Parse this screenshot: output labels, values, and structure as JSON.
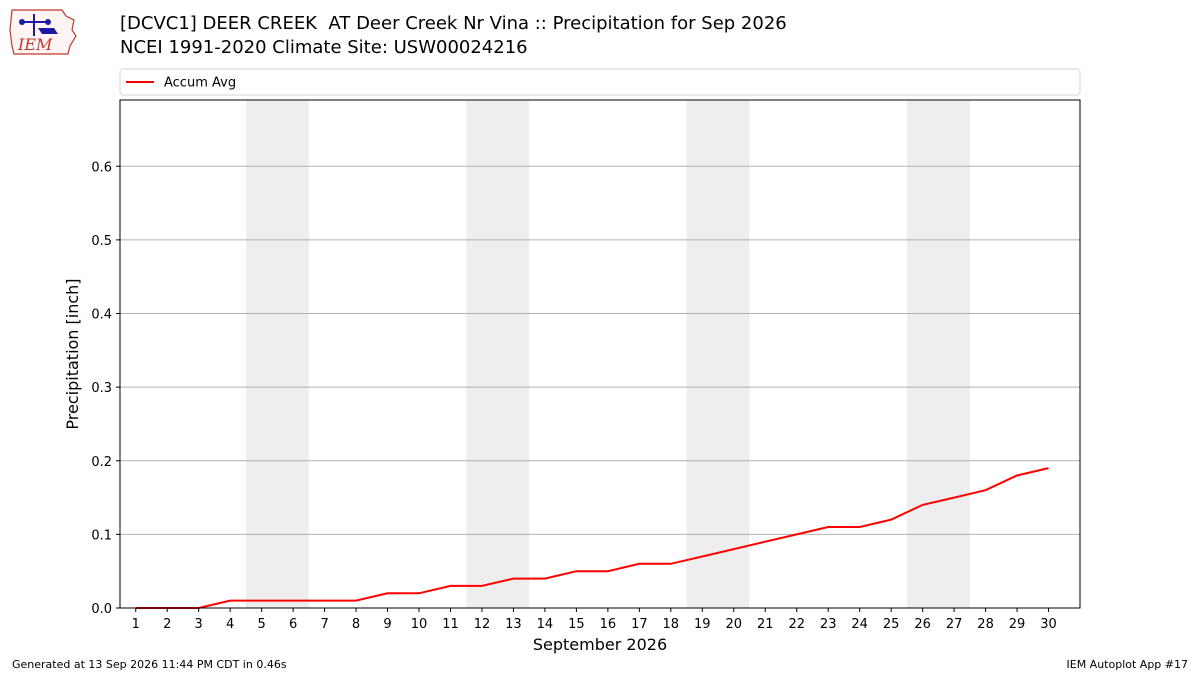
{
  "logo": {
    "text": "IEM",
    "icon": "iem-logo-icon"
  },
  "header": {
    "title": "[DCVC1] DEER CREEK  AT Deer Creek Nr Vina :: Precipitation for Sep 2026",
    "subtitle": "NCEI 1991-2020 Climate Site: USW00024216"
  },
  "footer": {
    "left": "Generated at 13 Sep 2026 11:44 PM CDT in 0.46s",
    "right": "IEM Autoplot App #17"
  },
  "colors": {
    "line": "#ff0000",
    "weekend_band": "#eeeeee",
    "grid": "#b0b0b0"
  },
  "chart_data": {
    "type": "line",
    "title": "[DCVC1] DEER CREEK  AT Deer Creek Nr Vina :: Precipitation for Sep 2026",
    "subtitle": "NCEI 1991-2020 Climate Site: USW00024216",
    "xlabel": "September 2026",
    "ylabel": "Precipitation [inch]",
    "x": [
      1,
      2,
      3,
      4,
      5,
      6,
      7,
      8,
      9,
      10,
      11,
      12,
      13,
      14,
      15,
      16,
      17,
      18,
      19,
      20,
      21,
      22,
      23,
      24,
      25,
      26,
      27,
      28,
      29,
      30
    ],
    "xlim": [
      0.5,
      31
    ],
    "ylim": [
      0,
      0.69
    ],
    "yticks": [
      0.0,
      0.1,
      0.2,
      0.3,
      0.4,
      0.5,
      0.6
    ],
    "ytick_labels": [
      "0.0",
      "0.1",
      "0.2",
      "0.3",
      "0.4",
      "0.5",
      "0.6"
    ],
    "grid": "horizontal",
    "legend_position": "top",
    "weekend_bands": [
      [
        5,
        6
      ],
      [
        12,
        13
      ],
      [
        19,
        20
      ],
      [
        26,
        27
      ]
    ],
    "series": [
      {
        "name": "Accum Avg",
        "color": "#ff0000",
        "values": [
          0.0,
          0.0,
          0.0,
          0.01,
          0.01,
          0.01,
          0.01,
          0.01,
          0.02,
          0.02,
          0.03,
          0.03,
          0.04,
          0.04,
          0.05,
          0.05,
          0.06,
          0.06,
          0.07,
          0.08,
          0.09,
          0.1,
          0.11,
          0.11,
          0.12,
          0.14,
          0.15,
          0.16,
          0.18,
          0.19
        ]
      }
    ]
  }
}
